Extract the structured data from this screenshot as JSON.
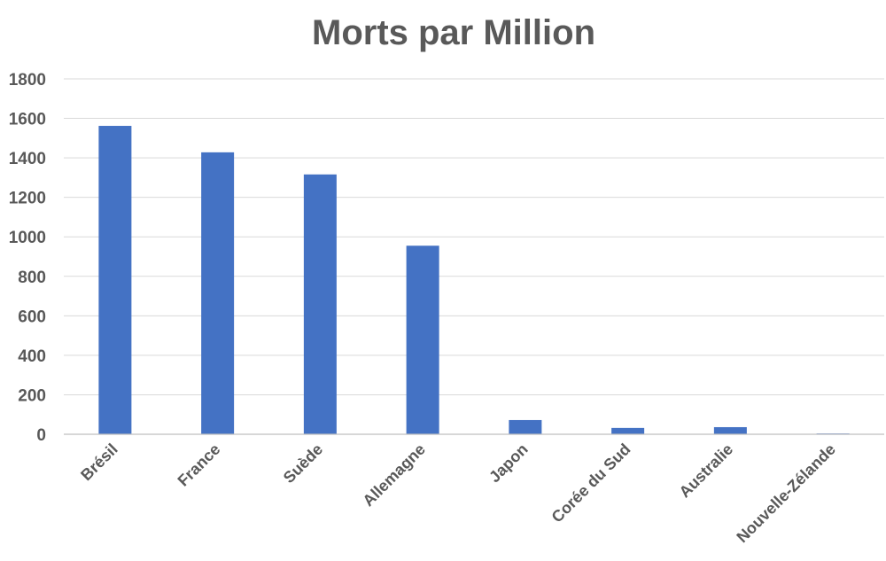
{
  "chart_data": {
    "type": "bar",
    "title": "Morts par Million",
    "categories": [
      "Brésil",
      "France",
      "Suède",
      "Allemagne",
      "Japon",
      "Corée du Sud",
      "Australie",
      "Nouvelle-Zélande"
    ],
    "values": [
      1562,
      1428,
      1316,
      955,
      72,
      32,
      36,
      4
    ],
    "ylim": [
      0,
      1800
    ],
    "yticks": [
      0,
      200,
      400,
      600,
      800,
      1000,
      1200,
      1400,
      1600,
      1800
    ],
    "grid": true,
    "legend": "none",
    "colors": {
      "bar": "#4472c4"
    }
  }
}
